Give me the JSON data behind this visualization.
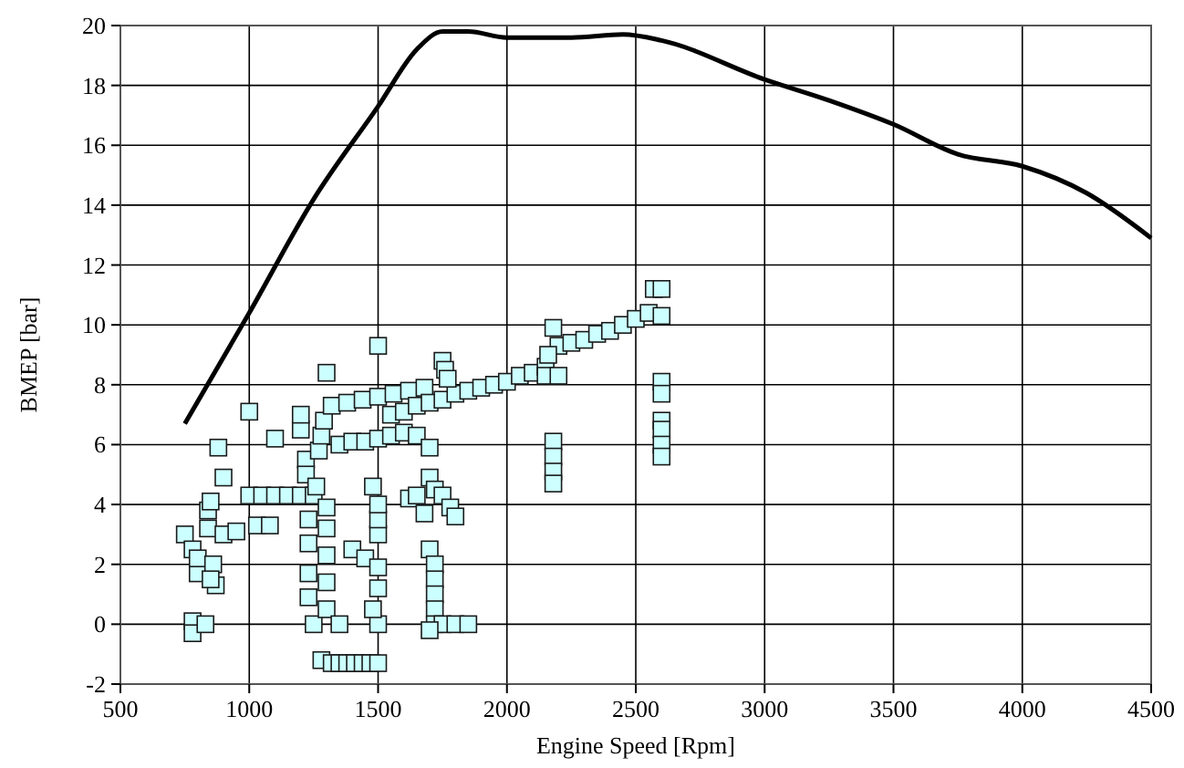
{
  "chart_data": {
    "type": "scatter",
    "xlabel": "Engine Speed [Rpm]",
    "ylabel": "BMEP [bar]",
    "xlim": [
      500,
      4500
    ],
    "xticks": [
      500,
      1000,
      1500,
      2000,
      2500,
      3000,
      3500,
      4000,
      4500
    ],
    "ylim": [
      -2,
      20
    ],
    "yticks": [
      -2,
      0,
      2,
      4,
      6,
      8,
      10,
      12,
      14,
      16,
      18,
      20
    ],
    "grid": true,
    "series": [
      {
        "type": "line",
        "color": "#000000",
        "line_style": "solid",
        "x": [
          750,
          1000,
          1250,
          1500,
          1650,
          1750,
          1850,
          2000,
          2250,
          2450,
          2600,
          3000,
          3250,
          3500,
          3750,
          4000,
          4250,
          4500
        ],
        "values": [
          6.7,
          10.4,
          14.2,
          17.3,
          19.2,
          19.8,
          19.8,
          19.6,
          19.6,
          19.7,
          19.5,
          18.2,
          17.5,
          16.7,
          15.7,
          15.3,
          14.4,
          12.9
        ]
      },
      {
        "color": "#ccffff",
        "marker": "square",
        "x": [
          750,
          780,
          800,
          800,
          780,
          780,
          830,
          840,
          850,
          840,
          870,
          860,
          850,
          880,
          900,
          900,
          950,
          1000,
          1000,
          1050,
          1100,
          1150,
          1200,
          1250,
          1030,
          1080,
          1100,
          1200,
          1200,
          1220,
          1220,
          1230,
          1230,
          1230,
          1230,
          1250,
          1260,
          1270,
          1280,
          1290,
          1300,
          1300,
          1300,
          1300,
          1300,
          1300,
          1280,
          1320,
          1350,
          1380,
          1410,
          1440,
          1470,
          1500,
          1350,
          1400,
          1450,
          1500,
          1480,
          1500,
          1500,
          1500,
          1500,
          1500,
          1480,
          1500,
          1350,
          1400,
          1450,
          1500,
          1550,
          1600,
          1650,
          1700,
          1320,
          1380,
          1440,
          1500,
          1560,
          1620,
          1680,
          1550,
          1600,
          1650,
          1700,
          1750,
          1800,
          1850,
          1900,
          1950,
          2000,
          2050,
          2100,
          2150,
          2200,
          2250,
          2300,
          2350,
          2400,
          2450,
          2500,
          2550,
          1750,
          1760,
          1770,
          1700,
          1720,
          1750,
          1780,
          1800,
          1700,
          1720,
          1720,
          1720,
          1720,
          1720,
          1750,
          1800,
          1850,
          1700,
          1620,
          1650,
          1680,
          2160,
          2180,
          2150,
          2200,
          2180,
          2180,
          2180,
          2180,
          2570,
          2600,
          2600,
          2600,
          2600,
          2600,
          2600,
          2600,
          2600
        ],
        "values": [
          3.0,
          2.5,
          1.7,
          2.2,
          0.1,
          -0.3,
          0,
          3.8,
          4.1,
          3.2,
          1.3,
          2.0,
          1.5,
          5.9,
          4.9,
          3.0,
          3.1,
          7.1,
          4.3,
          4.3,
          4.3,
          4.3,
          4.3,
          4.3,
          3.3,
          3.3,
          6.2,
          6.5,
          7.0,
          5.5,
          5.0,
          3.5,
          2.7,
          1.7,
          0.9,
          0,
          4.6,
          5.8,
          6.3,
          6.8,
          8.4,
          3.9,
          3.2,
          2.3,
          1.4,
          0.5,
          -1.2,
          -1.3,
          -1.3,
          -1.3,
          -1.3,
          -1.3,
          -1.3,
          -1.3,
          0,
          2.5,
          2.2,
          0,
          0.5,
          1.2,
          1.9,
          3.0,
          3.5,
          4.0,
          4.6,
          9.3,
          6.0,
          6.1,
          6.1,
          6.2,
          6.3,
          6.4,
          6.3,
          5.9,
          7.3,
          7.4,
          7.5,
          7.6,
          7.7,
          7.8,
          7.9,
          7.0,
          7.1,
          7.3,
          7.4,
          7.5,
          7.7,
          7.8,
          7.9,
          8.0,
          8.1,
          8.3,
          8.4,
          8.6,
          9.3,
          9.4,
          9.5,
          9.7,
          9.8,
          10.0,
          10.2,
          10.4,
          8.8,
          8.5,
          8.2,
          4.9,
          4.5,
          4.3,
          3.9,
          3.6,
          2.5,
          2.0,
          1.5,
          1.0,
          0.5,
          0,
          0,
          0,
          0,
          -0.2,
          4.2,
          4.3,
          3.7,
          9.0,
          9.9,
          8.3,
          8.3,
          6.1,
          5.6,
          5.1,
          4.7,
          11.2,
          11.2,
          10.3,
          8.1,
          7.7,
          6.8,
          6.5,
          6.0,
          5.6
        ]
      }
    ]
  }
}
